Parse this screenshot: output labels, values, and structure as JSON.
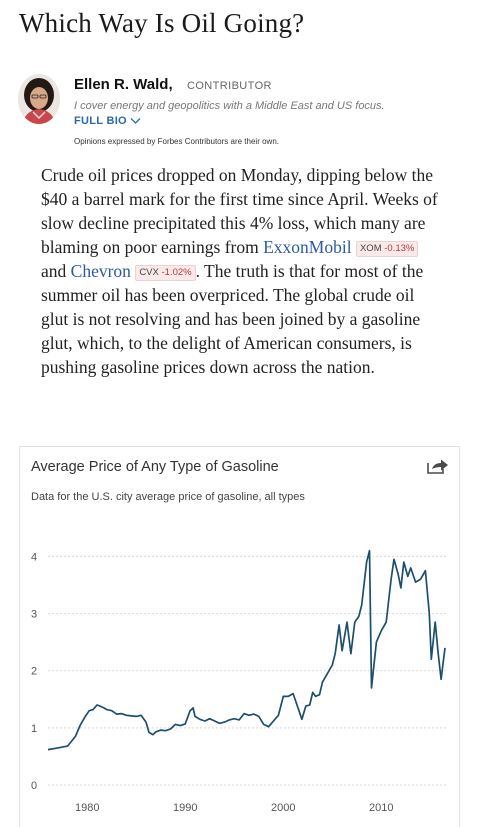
{
  "article": {
    "headline": "Which Way Is Oil Going?",
    "author": {
      "name": "Ellen R. Wald,",
      "role": "CONTRIBUTOR",
      "bio": "I cover energy and geopolitics with a Middle East and US focus.",
      "full_bio_label": "FULL BIO",
      "disclaimer": "Opinions expressed by Forbes Contributors are their own."
    },
    "body": {
      "p1": "Crude oil prices dropped on Monday, dipping below the $40 a barrel mark for the first time since April. Weeks of slow decline precipitated this 4% loss, which many are blaming on poor earnings from",
      "link1": "ExxonMobil",
      "ticker1": {
        "symbol": "XOM",
        "change": "-0.13%"
      },
      "and": "and",
      "link2": "Chevron",
      "ticker2": {
        "symbol": "CVX",
        "change": "-1.02%"
      },
      "p2": ". The truth is that for most of the summer oil has been overpriced. The global crude oil glut is not resolving and has been joined by a gasoline glut, which, to the delight of American consumers, is pushing gasoline prices down across the nation."
    }
  },
  "chart_card": {
    "title": "Average Price of Any Type of Gasoline",
    "subtitle": "Data for the U.S. city average price of gasoline, all types"
  },
  "chart_data": {
    "type": "line",
    "title": "Average Price of Any Type of Gasoline",
    "subtitle": "Data for the U.S. city average price of gasoline, all types",
    "xlim": [
      1976,
      2016.6
    ],
    "ylim": [
      0,
      4.2
    ],
    "x_ticks": [
      "1980",
      "1990",
      "2000",
      "2010"
    ],
    "y_ticks": [
      "0",
      "1",
      "2",
      "3",
      "4"
    ],
    "grid": true,
    "line_color": "#1d4e6e",
    "series": [
      {
        "x": [
          1976,
          1977,
          1978,
          1978.8,
          1979.3,
          1979.8,
          1980.2,
          1980.6,
          1981,
          1981.3,
          1981.7,
          1982,
          1982.5,
          1983,
          1983.5,
          1984,
          1984.5,
          1985,
          1985.5,
          1986,
          1986.3,
          1986.7,
          1987,
          1987.5,
          1988,
          1988.5,
          1989,
          1989.5,
          1990,
          1990.5,
          1990.8,
          1991,
          1991.5,
          1992,
          1992.5,
          1993,
          1993.5,
          1994,
          1994.5,
          1995,
          1995.5,
          1996,
          1996.5,
          1997,
          1997.5,
          1998,
          1998.5,
          1999,
          1999.5,
          2000,
          2000.5,
          2001,
          2001.5,
          2001.9,
          2002.3,
          2002.7,
          2003,
          2003.3,
          2003.7,
          2004,
          2004.5,
          2005,
          2005.3,
          2005.7,
          2006,
          2006.5,
          2006.9,
          2007.3,
          2007.7,
          2008,
          2008.5,
          2008.8,
          2009,
          2009.5,
          2010,
          2010.5,
          2011,
          2011.3,
          2011.7,
          2012,
          2012.3,
          2012.7,
          2013,
          2013.5,
          2014,
          2014.5,
          2014.9,
          2015.1,
          2015.5,
          2015.8,
          2016.1,
          2016.5
        ],
        "y": [
          0.62,
          0.65,
          0.68,
          0.85,
          1.05,
          1.2,
          1.3,
          1.32,
          1.4,
          1.38,
          1.35,
          1.32,
          1.3,
          1.24,
          1.25,
          1.22,
          1.21,
          1.2,
          1.22,
          1.1,
          0.92,
          0.88,
          0.93,
          0.96,
          0.95,
          0.98,
          1.06,
          1.04,
          1.07,
          1.3,
          1.35,
          1.2,
          1.15,
          1.12,
          1.16,
          1.12,
          1.08,
          1.1,
          1.14,
          1.16,
          1.14,
          1.25,
          1.22,
          1.24,
          1.2,
          1.06,
          1.02,
          1.12,
          1.22,
          1.55,
          1.55,
          1.6,
          1.35,
          1.15,
          1.38,
          1.4,
          1.62,
          1.55,
          1.58,
          1.8,
          1.95,
          2.1,
          2.3,
          2.8,
          2.35,
          2.85,
          2.3,
          2.85,
          2.95,
          3.15,
          3.9,
          4.1,
          1.7,
          2.5,
          2.7,
          2.85,
          3.6,
          3.95,
          3.7,
          3.45,
          3.9,
          3.65,
          3.8,
          3.55,
          3.6,
          3.75,
          3.0,
          2.2,
          2.85,
          2.3,
          1.85,
          2.4
        ]
      }
    ]
  },
  "icons": {
    "share": "share-arrow-icon",
    "chevron": "chevron-down-icon",
    "avatar": "author-photo"
  }
}
